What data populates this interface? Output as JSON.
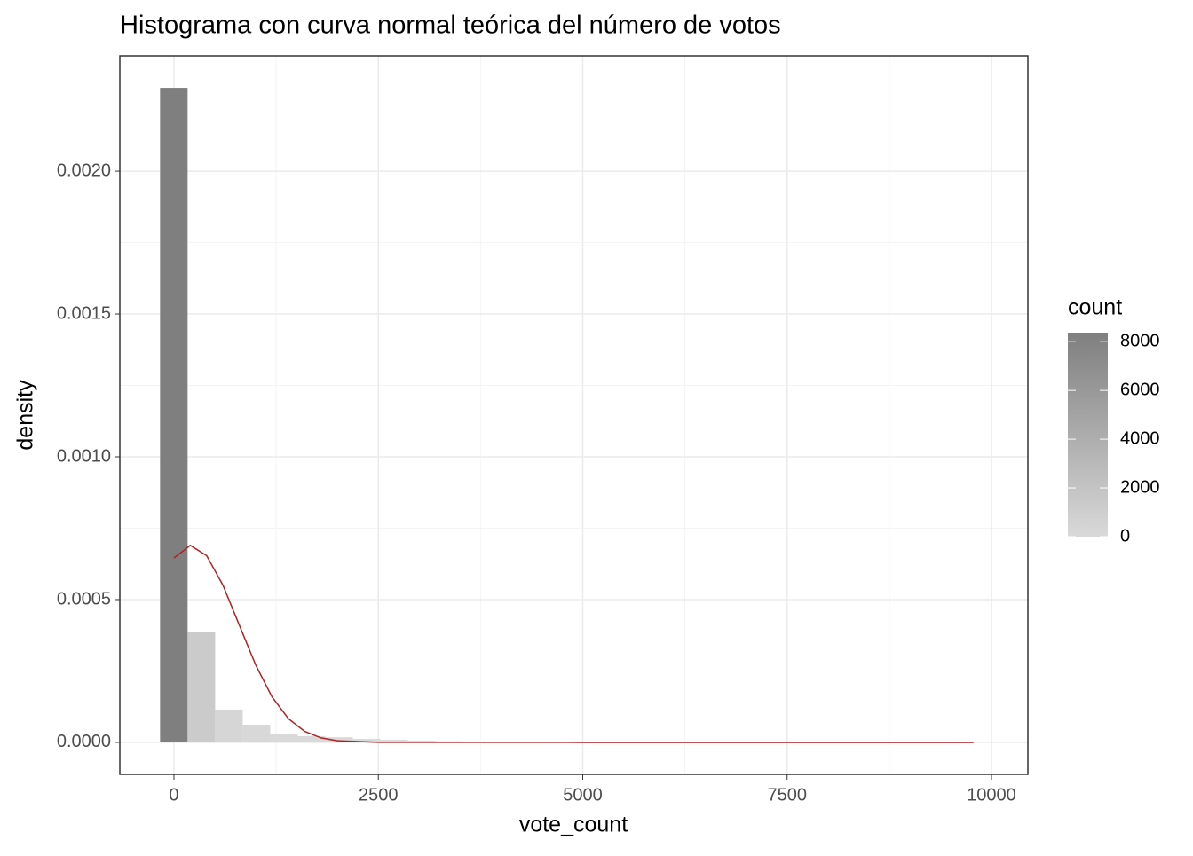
{
  "chart_data": {
    "type": "histogram",
    "title": "Histograma con curva normal teórica del número de votos",
    "x_label": "vote_count",
    "y_label": "density",
    "bins": [
      -170,
      167,
      504,
      841,
      1178,
      1515,
      1852,
      2189,
      2526,
      2863,
      3200,
      3537,
      3874,
      4211,
      4548,
      4885,
      5222,
      5559,
      5896,
      6233,
      6570,
      6907,
      7244,
      7581,
      7918,
      8255,
      8592,
      8929,
      9266,
      9603,
      9940
    ],
    "values": [
      0.002292,
      0.000385,
      0.000115,
      6.2e-05,
      3.1e-05,
      2.2e-05,
      1.8e-05,
      1.2e-05,
      9e-06,
      6e-06,
      4e-06,
      3e-06,
      2e-06,
      2e-06,
      1e-06,
      1e-06,
      1e-06,
      1e-06,
      0,
      0,
      0,
      0,
      0,
      0,
      0,
      0,
      0,
      0,
      0,
      0
    ],
    "colors": [
      "#7f7f7f",
      "#cbcbcb",
      "#d6d6d6",
      "#d8d8d8",
      "#d9d9d9",
      "#d9d9d9",
      "#d9d9d9",
      "#d9d9d9",
      "#d9d9d9",
      "#d9d9d9",
      "#d9d9d9",
      "#d9d9d9",
      "#d9d9d9",
      "#d9d9d9",
      "#d9d9d9",
      "#d9d9d9",
      "#d9d9d9",
      "#d9d9d9",
      "#d9d9d9",
      "#d9d9d9",
      "#d9d9d9",
      "#d9d9d9",
      "#d9d9d9",
      "#d9d9d9",
      "#d9d9d9",
      "#d9d9d9",
      "#d9d9d9",
      "#d9d9d9",
      "#d9d9d9",
      "#d9d9d9"
    ],
    "curve": {
      "color": "#b22222",
      "x": [
        0,
        200,
        400,
        600,
        800,
        1000,
        1200,
        1400,
        1600,
        1800,
        2000,
        2500,
        5000,
        7500,
        9780
      ],
      "y": [
        0.000646,
        0.00069,
        0.000654,
        0.00055,
        0.00041,
        0.000271,
        0.000159,
        8.3e-05,
        3.83e-05,
        1.57e-05,
        5.7e-06,
        2e-07,
        0,
        0,
        0
      ]
    },
    "xlim": [
      -662,
      10445
    ],
    "ylim": [
      -0.000112,
      0.002404
    ],
    "xticks": [
      0,
      2500,
      5000,
      7500,
      10000
    ],
    "yticks": [
      {
        "value": 0,
        "label": "0.0000"
      },
      {
        "value": 0.0005,
        "label": "0.0005"
      },
      {
        "value": 0.001,
        "label": "0.0010"
      },
      {
        "value": 0.0015,
        "label": "0.0015"
      },
      {
        "value": 0.002,
        "label": "0.0020"
      }
    ],
    "grid": true,
    "legend": {
      "title": "count",
      "lim": [
        0,
        8370
      ],
      "ticks": [
        0,
        2000,
        4000,
        6000,
        8000
      ],
      "colors": [
        "#d9d9d9",
        "#7f7f7f"
      ]
    }
  }
}
